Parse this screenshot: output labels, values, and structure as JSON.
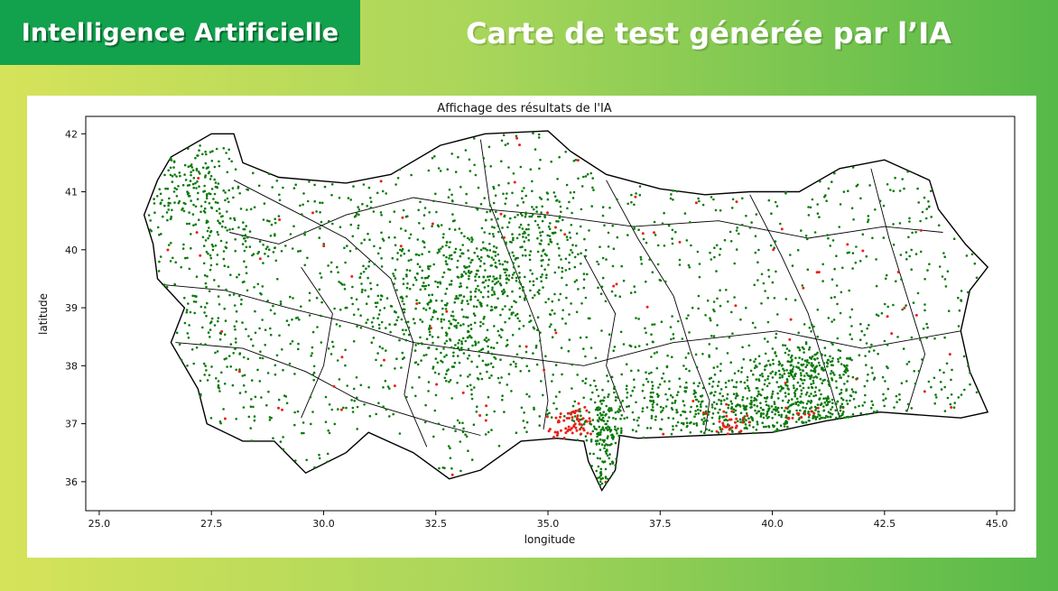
{
  "header": {
    "badge_label": "Intelligence Artificielle",
    "title": "Carte de test générée par l’IA"
  },
  "colors": {
    "badge_bg": "#12a14c",
    "gradient_left": "#d6e35a",
    "gradient_right": "#56b948",
    "point_green": "#0a7a0a",
    "point_red": "#e8231a",
    "border": "#000000"
  },
  "chart_data": {
    "type": "scatter",
    "title": "Affichage des résultats de l'IA",
    "xlabel": "longitude",
    "ylabel": "latitude",
    "xlim": [
      24.7,
      45.4
    ],
    "ylim": [
      35.5,
      42.3
    ],
    "xticks": [
      25.0,
      27.5,
      30.0,
      32.5,
      35.0,
      37.5,
      40.0,
      42.5,
      45.0
    ],
    "yticks": [
      36,
      37,
      38,
      39,
      40,
      41,
      42
    ],
    "grid": false,
    "clusters": [
      {
        "lon": 33.9,
        "lat": 39.6,
        "spread_lon": 0.9,
        "spread_lat": 0.5,
        "n": 320,
        "class": "green"
      },
      {
        "lon": 32.2,
        "lat": 39.2,
        "spread_lon": 0.8,
        "spread_lat": 0.6,
        "n": 220,
        "class": "green"
      },
      {
        "lon": 33.3,
        "lat": 38.2,
        "spread_lon": 0.5,
        "spread_lat": 0.4,
        "n": 80,
        "class": "green"
      },
      {
        "lon": 40.8,
        "lat": 37.95,
        "spread_lon": 0.6,
        "spread_lat": 0.22,
        "n": 230,
        "class": "green"
      },
      {
        "lon": 39.4,
        "lat": 37.2,
        "spread_lon": 0.8,
        "spread_lat": 0.3,
        "n": 260,
        "class": "green"
      },
      {
        "lon": 41.2,
        "lat": 37.2,
        "spread_lon": 0.8,
        "spread_lat": 0.2,
        "n": 160,
        "class": "green"
      },
      {
        "lon": 36.3,
        "lat": 37.1,
        "spread_lon": 0.35,
        "spread_lat": 0.3,
        "n": 120,
        "class": "green"
      },
      {
        "lon": 36.3,
        "lat": 36.4,
        "spread_lon": 0.2,
        "spread_lat": 0.35,
        "n": 60,
        "class": "green"
      },
      {
        "lon": 37.5,
        "lat": 37.4,
        "spread_lon": 0.6,
        "spread_lat": 0.3,
        "n": 100,
        "class": "green"
      },
      {
        "lon": 27.0,
        "lat": 41.1,
        "spread_lon": 0.6,
        "spread_lat": 0.35,
        "n": 120,
        "class": "green"
      },
      {
        "lon": 28.0,
        "lat": 40.2,
        "spread_lon": 0.7,
        "spread_lat": 0.3,
        "n": 70,
        "class": "green"
      },
      {
        "lon": 27.6,
        "lat": 38.5,
        "spread_lon": 0.6,
        "spread_lat": 0.6,
        "n": 80,
        "class": "green"
      },
      {
        "lon": 34.8,
        "lat": 40.7,
        "spread_lon": 0.6,
        "spread_lat": 0.3,
        "n": 70,
        "class": "green"
      },
      {
        "lon": 35.5,
        "lat": 36.95,
        "spread_lon": 0.25,
        "spread_lat": 0.12,
        "n": 45,
        "class": "red"
      },
      {
        "lon": 39.0,
        "lat": 37.0,
        "spread_lon": 0.25,
        "spread_lat": 0.15,
        "n": 30,
        "class": "red"
      },
      {
        "lon": 35.7,
        "lat": 37.2,
        "spread_lon": 0.15,
        "spread_lat": 0.1,
        "n": 15,
        "class": "red"
      },
      {
        "lon": 40.6,
        "lat": 37.15,
        "spread_lon": 0.3,
        "spread_lat": 0.1,
        "n": 12,
        "class": "red"
      }
    ],
    "scatter_background": {
      "green_points": 1400,
      "red_points": 80
    }
  }
}
